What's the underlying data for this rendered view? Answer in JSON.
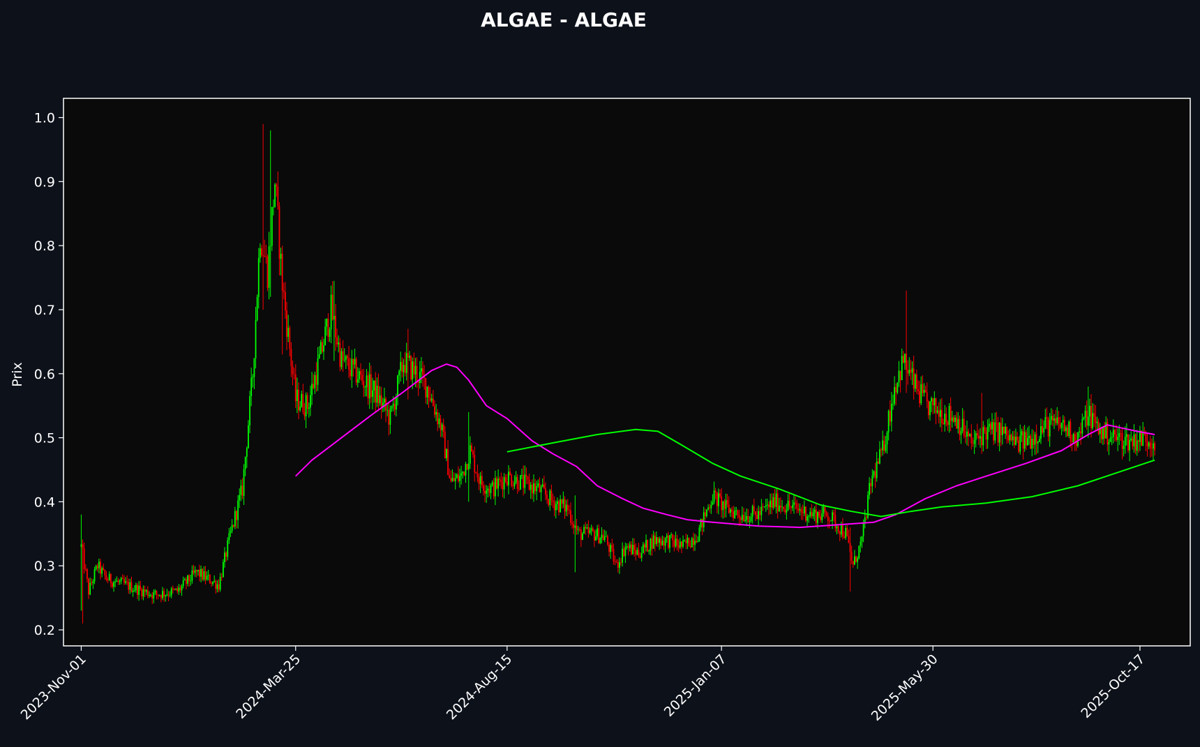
{
  "colors": {
    "background": "#0d111a",
    "plot_background": "#0a0a0a",
    "axis": "#ffffff",
    "up_candle": "#00ff00",
    "down_candle": "#ff0000",
    "ma_short": "#ff00ff",
    "ma_long": "#00ff00"
  },
  "chart_data": {
    "type": "candlestick",
    "title": "ALGAE - ALGAE",
    "ylabel": "Prix",
    "xlabel": "",
    "x_range": [
      "2023-10-20",
      "2025-11-20"
    ],
    "ylim": [
      0.175,
      1.03
    ],
    "grid": false,
    "yticks": [
      0.2,
      0.3,
      0.4,
      0.5,
      0.6,
      0.7,
      0.8,
      0.9,
      1.0
    ],
    "ytick_labels": [
      "0.2",
      "0.3",
      "0.4",
      "0.5",
      "0.6",
      "0.7",
      "0.8",
      "0.9",
      "1.0"
    ],
    "xticks": [
      "2023-11-01",
      "2024-03-25",
      "2024-08-15",
      "2025-01-07",
      "2025-05-30",
      "2025-10-17"
    ],
    "xtick_labels": [
      "2023-Nov-01",
      "2024-Mar-25",
      "2024-Aug-15",
      "2025-Jan-07",
      "2025-May-30",
      "2025-Oct-17"
    ],
    "price_path": [
      [
        "2023-11-01",
        0.33
      ],
      [
        "2023-11-06",
        0.26
      ],
      [
        "2023-11-12",
        0.3
      ],
      [
        "2023-11-18",
        0.28
      ],
      [
        "2023-12-01",
        0.27
      ],
      [
        "2023-12-20",
        0.255
      ],
      [
        "2024-01-05",
        0.26
      ],
      [
        "2024-01-18",
        0.29
      ],
      [
        "2024-02-02",
        0.27
      ],
      [
        "2024-02-10",
        0.35
      ],
      [
        "2024-02-18",
        0.42
      ],
      [
        "2024-02-25",
        0.6
      ],
      [
        "2024-03-01",
        0.82
      ],
      [
        "2024-03-06",
        0.76
      ],
      [
        "2024-03-11",
        0.9
      ],
      [
        "2024-03-16",
        0.74
      ],
      [
        "2024-03-20",
        0.66
      ],
      [
        "2024-03-25",
        0.56
      ],
      [
        "2024-04-02",
        0.55
      ],
      [
        "2024-04-10",
        0.62
      ],
      [
        "2024-04-18",
        0.7
      ],
      [
        "2024-04-25",
        0.62
      ],
      [
        "2024-05-05",
        0.6
      ],
      [
        "2024-05-18",
        0.57
      ],
      [
        "2024-05-28",
        0.53
      ],
      [
        "2024-06-06",
        0.62
      ],
      [
        "2024-06-15",
        0.6
      ],
      [
        "2024-06-22",
        0.58
      ],
      [
        "2024-07-01",
        0.52
      ],
      [
        "2024-07-08",
        0.43
      ],
      [
        "2024-07-15",
        0.44
      ],
      [
        "2024-07-21",
        0.48
      ],
      [
        "2024-07-28",
        0.43
      ],
      [
        "2024-08-05",
        0.42
      ],
      [
        "2024-08-15",
        0.44
      ],
      [
        "2024-08-25",
        0.43
      ],
      [
        "2024-09-05",
        0.42
      ],
      [
        "2024-09-15",
        0.4
      ],
      [
        "2024-09-25",
        0.39
      ],
      [
        "2024-10-02",
        0.35
      ],
      [
        "2024-10-12",
        0.35
      ],
      [
        "2024-10-20",
        0.345
      ],
      [
        "2024-10-28",
        0.3
      ],
      [
        "2024-11-03",
        0.33
      ],
      [
        "2024-11-12",
        0.32
      ],
      [
        "2024-11-22",
        0.34
      ],
      [
        "2024-12-02",
        0.34
      ],
      [
        "2024-12-12",
        0.33
      ],
      [
        "2024-12-22",
        0.35
      ],
      [
        "2025-01-01",
        0.41
      ],
      [
        "2025-01-10",
        0.39
      ],
      [
        "2025-01-20",
        0.38
      ],
      [
        "2025-02-01",
        0.38
      ],
      [
        "2025-02-12",
        0.4
      ],
      [
        "2025-02-25",
        0.39
      ],
      [
        "2025-03-10",
        0.38
      ],
      [
        "2025-03-20",
        0.38
      ],
      [
        "2025-04-01",
        0.35
      ],
      [
        "2025-04-06",
        0.3
      ],
      [
        "2025-04-12",
        0.34
      ],
      [
        "2025-04-18",
        0.43
      ],
      [
        "2025-04-26",
        0.48
      ],
      [
        "2025-05-04",
        0.58
      ],
      [
        "2025-05-10",
        0.62
      ],
      [
        "2025-05-18",
        0.58
      ],
      [
        "2025-05-26",
        0.55
      ],
      [
        "2025-06-05",
        0.54
      ],
      [
        "2025-06-15",
        0.53
      ],
      [
        "2025-06-25",
        0.49
      ],
      [
        "2025-07-05",
        0.51
      ],
      [
        "2025-07-15",
        0.51
      ],
      [
        "2025-07-25",
        0.49
      ],
      [
        "2025-08-05",
        0.5
      ],
      [
        "2025-08-15",
        0.52
      ],
      [
        "2025-08-25",
        0.52
      ],
      [
        "2025-09-05",
        0.5
      ],
      [
        "2025-09-12",
        0.54
      ],
      [
        "2025-09-20",
        0.51
      ],
      [
        "2025-10-01",
        0.5
      ],
      [
        "2025-10-10",
        0.495
      ],
      [
        "2025-10-20",
        0.5
      ],
      [
        "2025-10-27",
        0.495
      ]
    ],
    "price_extremes": [
      [
        "2023-11-01",
        0.38,
        0.23
      ],
      [
        "2023-11-02",
        0.33,
        0.21
      ],
      [
        "2024-03-03",
        0.99,
        0.7
      ],
      [
        "2024-03-08",
        0.98,
        0.72
      ],
      [
        "2024-03-16",
        0.8,
        0.63
      ],
      [
        "2024-04-20",
        0.745,
        0.62
      ],
      [
        "2024-06-09",
        0.67,
        0.56
      ],
      [
        "2024-07-20",
        0.54,
        0.4
      ],
      [
        "2024-09-30",
        0.41,
        0.29
      ],
      [
        "2025-04-04",
        0.36,
        0.26
      ],
      [
        "2025-05-12",
        0.73,
        0.57
      ],
      [
        "2025-07-02",
        0.57,
        0.48
      ],
      [
        "2025-09-12",
        0.58,
        0.5
      ]
    ],
    "series": [
      {
        "points": [
          [
            "2024-03-25",
            0.44
          ],
          [
            "2024-04-05",
            0.465
          ],
          [
            "2024-04-25",
            0.5
          ],
          [
            "2024-05-15",
            0.535
          ],
          [
            "2024-06-05",
            0.57
          ],
          [
            "2024-06-25",
            0.605
          ],
          [
            "2024-07-05",
            0.615
          ],
          [
            "2024-07-12",
            0.61
          ],
          [
            "2024-07-20",
            0.59
          ],
          [
            "2024-08-01",
            0.55
          ],
          [
            "2024-08-15",
            0.53
          ],
          [
            "2024-09-01",
            0.495
          ],
          [
            "2024-09-15",
            0.475
          ],
          [
            "2024-10-01",
            0.455
          ],
          [
            "2024-10-15",
            0.425
          ],
          [
            "2024-11-01",
            0.405
          ],
          [
            "2024-11-15",
            0.39
          ],
          [
            "2024-12-01",
            0.38
          ],
          [
            "2024-12-15",
            0.372
          ],
          [
            "2025-01-01",
            0.368
          ],
          [
            "2025-02-01",
            0.362
          ],
          [
            "2025-03-01",
            0.36
          ],
          [
            "2025-04-01",
            0.365
          ],
          [
            "2025-04-20",
            0.368
          ],
          [
            "2025-05-05",
            0.38
          ],
          [
            "2025-05-25",
            0.405
          ],
          [
            "2025-06-15",
            0.425
          ],
          [
            "2025-07-05",
            0.44
          ],
          [
            "2025-08-01",
            0.46
          ],
          [
            "2025-08-25",
            0.48
          ],
          [
            "2025-09-12",
            0.505
          ],
          [
            "2025-09-25",
            0.52
          ],
          [
            "2025-10-05",
            0.515
          ],
          [
            "2025-10-15",
            0.51
          ],
          [
            "2025-10-27",
            0.505
          ]
        ]
      },
      {
        "points": [
          [
            "2024-08-15",
            0.478
          ],
          [
            "2024-09-15",
            0.492
          ],
          [
            "2024-10-15",
            0.505
          ],
          [
            "2024-11-10",
            0.513
          ],
          [
            "2024-11-25",
            0.51
          ],
          [
            "2024-12-10",
            0.49
          ],
          [
            "2025-01-01",
            0.46
          ],
          [
            "2025-01-20",
            0.44
          ],
          [
            "2025-02-15",
            0.42
          ],
          [
            "2025-03-15",
            0.395
          ],
          [
            "2025-04-05",
            0.385
          ],
          [
            "2025-04-25",
            0.377
          ],
          [
            "2025-05-15",
            0.385
          ],
          [
            "2025-06-05",
            0.392
          ],
          [
            "2025-07-05",
            0.398
          ],
          [
            "2025-08-05",
            0.408
          ],
          [
            "2025-09-05",
            0.425
          ],
          [
            "2025-10-01",
            0.445
          ],
          [
            "2025-10-27",
            0.465
          ]
        ]
      }
    ]
  }
}
